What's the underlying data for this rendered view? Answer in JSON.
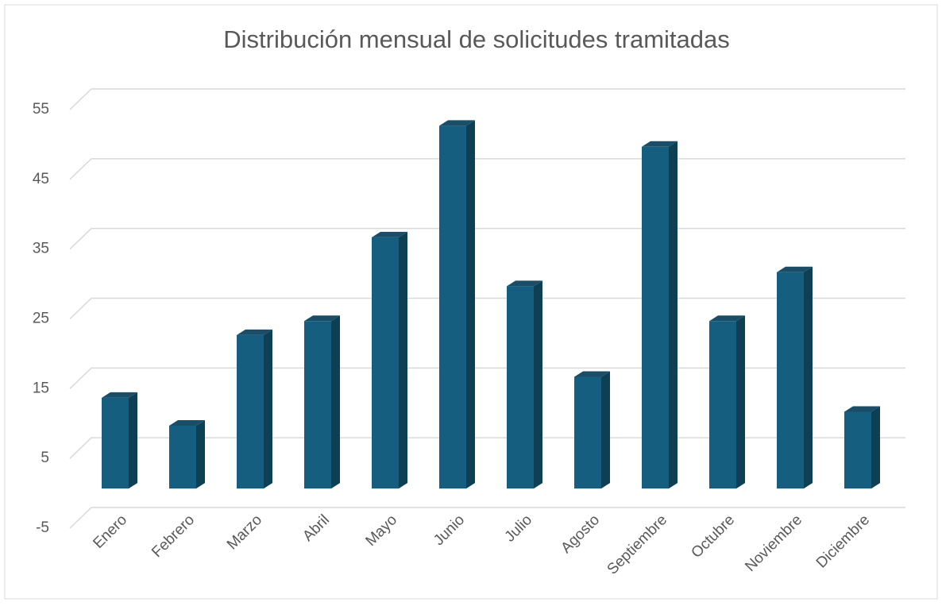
{
  "chart_data": {
    "type": "bar",
    "title": "Distribución mensual de solicitudes tramitadas",
    "categories": [
      "Enero",
      "Febrero",
      "Marzo",
      "Abril",
      "Mayo",
      "Junio",
      "Julio",
      "Agosto",
      "Septiembre",
      "Octubre",
      "Noviembre",
      "Diciembre"
    ],
    "values": [
      13,
      9,
      22,
      24,
      36,
      52,
      29,
      16,
      49,
      24,
      31,
      11
    ],
    "color": "#155e7f",
    "ylim": [
      -5,
      55
    ],
    "yticks": [
      -5,
      5,
      15,
      25,
      35,
      45,
      55
    ],
    "grid": true
  }
}
